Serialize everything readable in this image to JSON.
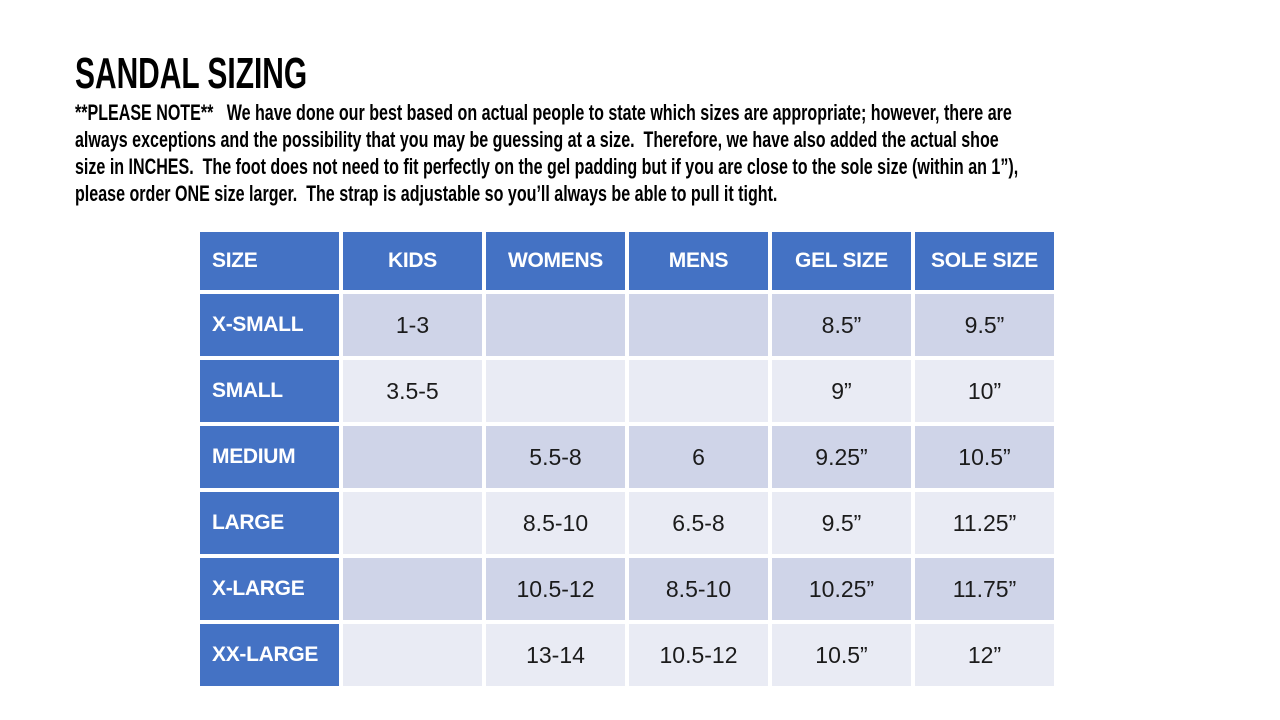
{
  "title": "SANDAL SIZING",
  "note": {
    "lines": [
      "**PLEASE NOTE**   We have done our best based on actual people to state which sizes are appropriate; however, there are",
      "always exceptions and the possibility that you may be guessing at a size.  Therefore, we have also added the actual shoe",
      "size in INCHES.  The foot does not need to fit perfectly on the gel padding but if you are close to the sole size (within an 1”),",
      "please order ONE size larger.  The strap is adjustable so you’ll always be able to pull it tight."
    ]
  },
  "table": {
    "headers": [
      "SIZE",
      "KIDS",
      "WOMENS",
      "MENS",
      "GEL SIZE",
      "SOLE SIZE"
    ],
    "rows": [
      {
        "label": "X-SMALL",
        "kids": "1-3",
        "womens": "",
        "mens": "",
        "gel": "8.5”",
        "sole": "9.5”"
      },
      {
        "label": "SMALL",
        "kids": "3.5-5",
        "womens": "",
        "mens": "",
        "gel": "9”",
        "sole": "10”"
      },
      {
        "label": "MEDIUM",
        "kids": "",
        "womens": "5.5-8",
        "mens": "6",
        "gel": "9.25”",
        "sole": "10.5”"
      },
      {
        "label": "LARGE",
        "kids": "",
        "womens": "8.5-10",
        "mens": "6.5-8",
        "gel": "9.5”",
        "sole": "11.25”"
      },
      {
        "label": "X-LARGE",
        "kids": "",
        "womens": "10.5-12",
        "mens": "8.5-10",
        "gel": "10.25”",
        "sole": "11.75”"
      },
      {
        "label": "XX-LARGE",
        "kids": "",
        "womens": "13-14",
        "mens": "10.5-12",
        "gel": "10.5”",
        "sole": "12”"
      }
    ]
  },
  "colors": {
    "accent_blue": "#4472C4",
    "band_dark": "#CFD4E8",
    "band_light": "#E9EBF4",
    "text_dark": "#1b1b1b",
    "header_text": "#FFFFFF",
    "page_bg": "#FFFFFF"
  }
}
